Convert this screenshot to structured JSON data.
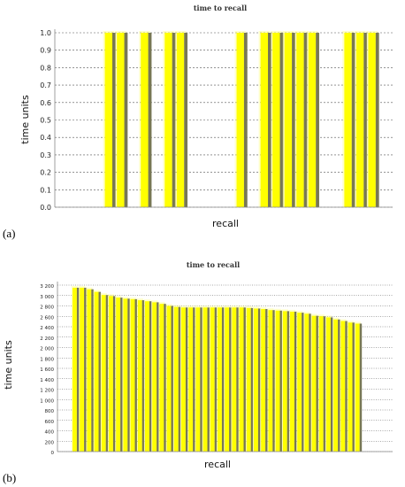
{
  "panel_a_label": "(a)",
  "panel_b_label": "(b)",
  "chart_data": [
    {
      "type": "bar",
      "title": "time to recall",
      "xlabel": "recall",
      "ylabel": "time units",
      "ylim": [
        0,
        1.0
      ],
      "ytick_labels": [
        "0.0",
        "0.1",
        "0.2",
        "0.3",
        "0.4",
        "0.5",
        "0.6",
        "0.7",
        "0.8",
        "0.9",
        "1.0"
      ],
      "grid": "horizontal dashed",
      "bar_color": "#ffff00",
      "values": [
        0,
        0,
        0,
        1,
        1,
        0,
        1,
        0,
        1,
        1,
        0,
        0,
        0,
        0,
        1,
        0,
        1,
        1,
        1,
        1,
        1,
        0,
        0,
        1,
        1,
        1
      ]
    },
    {
      "type": "bar",
      "title": "time to recall",
      "xlabel": "recall",
      "ylabel": "time units",
      "ylim": [
        0,
        3200
      ],
      "ytick_labels": [
        "0",
        "200",
        "400",
        "600",
        "800",
        "1 000",
        "1 200",
        "1 400",
        "1 600",
        "1 800",
        "2 000",
        "2 200",
        "2 400",
        "2 600",
        "2 800",
        "3 000",
        "3 200"
      ],
      "grid": "horizontal dotted",
      "bar_color": "#ffff00",
      "values": [
        3150,
        3150,
        3120,
        3070,
        3010,
        2990,
        2960,
        2940,
        2930,
        2910,
        2890,
        2870,
        2840,
        2800,
        2780,
        2770,
        2770,
        2770,
        2770,
        2770,
        2770,
        2770,
        2770,
        2770,
        2760,
        2750,
        2740,
        2720,
        2710,
        2700,
        2690,
        2670,
        2650,
        2610,
        2600,
        2580,
        2540,
        2510,
        2480,
        2460
      ]
    }
  ]
}
